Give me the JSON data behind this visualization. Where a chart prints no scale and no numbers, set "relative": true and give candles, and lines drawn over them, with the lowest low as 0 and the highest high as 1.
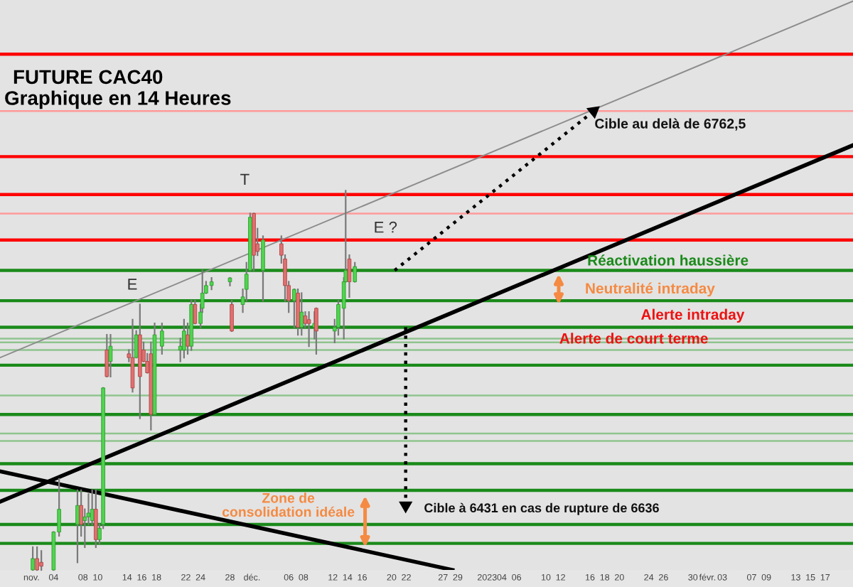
{
  "chart_data": {
    "type": "candlestick",
    "relative": true,
    "title": "FUTURE CAC40",
    "subtitle": "Graphique en 14 Heures",
    "x": [
      "2022-11-01T04:00",
      "2022-11-01T18:00",
      "2022-11-02T08:00",
      "2022-11-04T00:00",
      "2022-11-04T18:00",
      "2022-11-07T06:00",
      "2022-11-07T18:00",
      "2022-11-08T06:00",
      "2022-11-08T18:00",
      "2022-11-09T06:00",
      "2022-11-09T18:00",
      "2022-11-10T06:00",
      "2022-11-10T18:00",
      "2022-11-11T06:00",
      "2022-11-11T18:00",
      "2022-11-14T06:00",
      "2022-11-14T18:00",
      "2022-11-15T06:00",
      "2022-11-15T18:00",
      "2022-11-16T06:00",
      "2022-11-16T18:00",
      "2022-11-17T06:00",
      "2022-11-17T18:00",
      "2022-11-18T18:00",
      "2022-11-21T06:00",
      "2022-11-21T18:00",
      "2022-11-22T06:00",
      "2022-11-22T18:00",
      "2022-11-23T06:00",
      "2022-11-24T00:00",
      "2022-11-24T06:00",
      "2022-11-24T18:00",
      "2022-11-25T12:00",
      "2022-11-28T00:00",
      "2022-11-28T06:00",
      "2022-11-29T18:00",
      "2022-11-30T06:00",
      "2022-11-30T18:00",
      "2022-12-01T06:00",
      "2022-12-01T18:00",
      "2022-12-02T12:00",
      "2022-12-05T00:00",
      "2022-12-05T12:00",
      "2022-12-06T00:00",
      "2022-12-06T18:00",
      "2022-12-07T06:00",
      "2022-12-07T18:00",
      "2022-12-08T06:00",
      "2022-12-08T18:00",
      "2022-12-09T12:00",
      "2022-12-09T18:00",
      "2022-12-12T06:00",
      "2022-12-12T18:00",
      "2022-12-13T12:00",
      "2022-12-13T18:00",
      "2022-12-14T06:00",
      "2022-12-15T00:00"
    ],
    "ohlc": [
      [
        0,
        0.06,
        0,
        0.03
      ],
      [
        0.03,
        0.06,
        0,
        0
      ],
      [
        0.02,
        0.05,
        0,
        0.01
      ],
      [
        0,
        0.1,
        0,
        0.1
      ],
      [
        0.1,
        0.24,
        0.09,
        0.16
      ],
      [
        0.12,
        0.21,
        0.02,
        0.17
      ],
      [
        0.17,
        0.21,
        0.09,
        0.12
      ],
      [
        0.13,
        0.16,
        0.06,
        0.14
      ],
      [
        0.14,
        0.2,
        0.12,
        0.15
      ],
      [
        0.13,
        0.21,
        0.12,
        0.16
      ],
      [
        0.16,
        0.21,
        0.06,
        0.08
      ],
      [
        0.08,
        0.12,
        0.07,
        0.11
      ],
      [
        0.12,
        0.48,
        0.11,
        0.48
      ],
      [
        0.58,
        0.62,
        0.51,
        0.51
      ],
      [
        0.55,
        0.62,
        0.51,
        0.59
      ],
      [
        0.57,
        0.58,
        0.55,
        0.56
      ],
      [
        0.56,
        0.66,
        0.47,
        0.48
      ],
      [
        0.56,
        0.63,
        0.56,
        0.62
      ],
      [
        0.62,
        0.7,
        0.4,
        0.51
      ],
      [
        0.58,
        0.6,
        0.55,
        0.55
      ],
      [
        0.55,
        0.57,
        0.52,
        0.52
      ],
      [
        0.57,
        0.6,
        0.37,
        0.41
      ],
      [
        0.41,
        0.65,
        0.41,
        0.62
      ],
      [
        0.59,
        0.65,
        0.57,
        0.63
      ],
      [
        0.58,
        0.61,
        0.55,
        0.59
      ],
      [
        0.58,
        0.66,
        0.56,
        0.63
      ],
      [
        0.62,
        0.65,
        0.57,
        0.59
      ],
      [
        0.59,
        0.71,
        0.58,
        0.7
      ],
      [
        0.7,
        0.71,
        0.65,
        0.65
      ],
      [
        0.65,
        0.7,
        0.64,
        0.68
      ],
      [
        0.69,
        0.79,
        0.68,
        0.73
      ],
      [
        0.73,
        0.76,
        0.73,
        0.75
      ],
      [
        0.75,
        0.77,
        0.74,
        0.76
      ],
      [
        0.76,
        0.77,
        0.75,
        0.77
      ],
      [
        0.7,
        0.71,
        0.63,
        0.63
      ],
      [
        0.7,
        0.74,
        0.68,
        0.72
      ],
      [
        0.74,
        0.81,
        0.71,
        0.78
      ],
      [
        0.79,
        0.94,
        0.79,
        0.93
      ],
      [
        0.94,
        0.94,
        0.79,
        0.83
      ],
      [
        0.86,
        0.9,
        0.83,
        0.84
      ],
      [
        0.79,
        0.88,
        0.71,
        0.87
      ],
      [
        0.86,
        0.88,
        0.81,
        0.83
      ],
      [
        0.82,
        0.83,
        0.71,
        0.75
      ],
      [
        0.75,
        0.76,
        0.68,
        0.71
      ],
      [
        0.71,
        0.74,
        0.64,
        0.74
      ],
      [
        0.73,
        0.74,
        0.62,
        0.64
      ],
      [
        0.64,
        0.73,
        0.62,
        0.68
      ],
      [
        0.67,
        0.68,
        0.64,
        0.65
      ],
      [
        0.66,
        0.68,
        0.59,
        0.65
      ],
      [
        0.64,
        0.68,
        0.61,
        0.65
      ],
      [
        0.69,
        0.69,
        0.57,
        0.63
      ],
      [
        0.63,
        0.66,
        0.6,
        0.64
      ],
      [
        0.64,
        0.71,
        0.62,
        0.7
      ],
      [
        0.69,
        0.77,
        0.61,
        0.76
      ],
      [
        0.76,
        1.0,
        0.76,
        0.79
      ],
      [
        0.82,
        0.83,
        0.72,
        0.76
      ],
      [
        0.76,
        0.81,
        0.76,
        0.8
      ]
    ],
    "series": [
      {
        "type": "line",
        "x": [
          "2022-10-27T17:00",
          "2023-02-20T19:00"
        ],
        "values": [
          0.18,
          1.12
        ],
        "color": "#000000",
        "line_style": "solid"
      },
      {
        "type": "line",
        "x": [
          "2022-10-27T17:00",
          "2022-12-28T07:00"
        ],
        "values": [
          0.26,
          0.0
        ],
        "color": "#000000",
        "line_style": "solid"
      },
      {
        "type": "line",
        "x": [
          "2022-10-27T17:00",
          "2023-02-20T19:00"
        ],
        "values": [
          0.56,
          1.5
        ],
        "color": "#8c8c8c",
        "line_style": "solid"
      },
      {
        "type": "line",
        "x": [
          "2022-12-20T10:00",
          "2023-01-16T12:00"
        ],
        "values": [
          0.79,
          1.21
        ],
        "color": "#000000",
        "line_style": "dotted"
      },
      {
        "type": "line",
        "x": [
          "2022-12-21T22:00",
          "2022-12-21T22:00"
        ],
        "values": [
          0.64,
          0.17
        ],
        "color": "#000000",
        "line_style": "dotted"
      }
    ],
    "ref_lines": [
      {
        "axis": "y",
        "value": 1.36,
        "color": "#ff0000"
      },
      {
        "axis": "y",
        "value": 1.21,
        "color": "#ff9a9a"
      },
      {
        "axis": "y",
        "value": 1.09,
        "color": "#ff0000"
      },
      {
        "axis": "y",
        "value": 0.99,
        "color": "#ff0000"
      },
      {
        "axis": "y",
        "value": 0.94,
        "color": "#ff9a9a"
      },
      {
        "axis": "y",
        "value": 0.87,
        "color": "#ff0000"
      },
      {
        "axis": "y",
        "value": 0.79,
        "color": "#1a8a1a"
      },
      {
        "axis": "y",
        "value": 0.71,
        "color": "#1a8a1a"
      },
      {
        "axis": "y",
        "value": 0.64,
        "color": "#1a8a1a"
      },
      {
        "axis": "y",
        "value": 0.61,
        "color": "#8fc48f"
      },
      {
        "axis": "y",
        "value": 0.6,
        "color": "#8fc48f"
      },
      {
        "axis": "y",
        "value": 0.58,
        "color": "#8fc48f"
      },
      {
        "axis": "y",
        "value": 0.54,
        "color": "#1a8a1a"
      },
      {
        "axis": "y",
        "value": 0.46,
        "color": "#8fc48f"
      },
      {
        "axis": "y",
        "value": 0.41,
        "color": "#1a8a1a"
      },
      {
        "axis": "y",
        "value": 0.36,
        "color": "#8fc48f"
      },
      {
        "axis": "y",
        "value": 0.34,
        "color": "#8fc48f"
      },
      {
        "axis": "y",
        "value": 0.28,
        "color": "#1a8a1a"
      },
      {
        "axis": "y",
        "value": 0.21,
        "color": "#1a8a1a"
      },
      {
        "axis": "y",
        "value": 0.12,
        "color": "#1a8a1a"
      },
      {
        "axis": "y",
        "value": 0.07,
        "color": "#1a8a1a"
      }
    ],
    "annotations": [
      "T",
      "E",
      "E ?",
      "Cible au delà de 6762,5",
      "Réactivation haussière",
      "Neutralité intraday",
      "Alerte intraday",
      "Alerte de court terme",
      "Zone de\nconsolidation idéale",
      "Cible à 6431 en cas de rupture de 6636"
    ],
    "xlim": [
      "2022-10-27T17:00",
      "2023-02-20T19:00"
    ],
    "xticks": [
      {
        "value": "2022-11-01",
        "label": "nov."
      },
      {
        "value": "2022-11-04",
        "label": "04"
      },
      {
        "value": "2022-11-08",
        "label": "08"
      },
      {
        "value": "2022-11-10",
        "label": "10"
      },
      {
        "value": "2022-11-14",
        "label": "14"
      },
      {
        "value": "2022-11-16",
        "label": "16"
      },
      {
        "value": "2022-11-18",
        "label": "18"
      },
      {
        "value": "2022-11-22",
        "label": "22"
      },
      {
        "value": "2022-11-24",
        "label": "24"
      },
      {
        "value": "2022-11-28",
        "label": "28"
      },
      {
        "value": "2022-12-01",
        "label": "déc."
      },
      {
        "value": "2022-12-06",
        "label": "06"
      },
      {
        "value": "2022-12-08",
        "label": "08"
      },
      {
        "value": "2022-12-12",
        "label": "12"
      },
      {
        "value": "2022-12-14",
        "label": "14"
      },
      {
        "value": "2022-12-16",
        "label": "16"
      },
      {
        "value": "2022-12-20",
        "label": "20"
      },
      {
        "value": "2022-12-22",
        "label": "22"
      },
      {
        "value": "2022-12-27",
        "label": "27"
      },
      {
        "value": "2022-12-29",
        "label": "29"
      },
      {
        "value": "2023-01-02",
        "label": "2023"
      },
      {
        "value": "2023-01-04",
        "label": "04"
      },
      {
        "value": "2023-01-06",
        "label": "06"
      },
      {
        "value": "2023-01-10",
        "label": "10"
      },
      {
        "value": "2023-01-12",
        "label": "12"
      },
      {
        "value": "2023-01-16",
        "label": "16"
      },
      {
        "value": "2023-01-18",
        "label": "18"
      },
      {
        "value": "2023-01-20",
        "label": "20"
      },
      {
        "value": "2023-01-24",
        "label": "24"
      },
      {
        "value": "2023-01-26",
        "label": "26"
      },
      {
        "value": "2023-01-30",
        "label": "30"
      },
      {
        "value": "2023-02-01",
        "label": "févr."
      },
      {
        "value": "2023-02-03",
        "label": "03"
      },
      {
        "value": "2023-02-07",
        "label": "07"
      },
      {
        "value": "2023-02-09",
        "label": "09"
      },
      {
        "value": "2023-02-13",
        "label": "13"
      },
      {
        "value": "2023-02-15",
        "label": "15"
      },
      {
        "value": "2023-02-17",
        "label": "17"
      }
    ],
    "tick_labels": "x",
    "grid": false,
    "legend": false
  }
}
